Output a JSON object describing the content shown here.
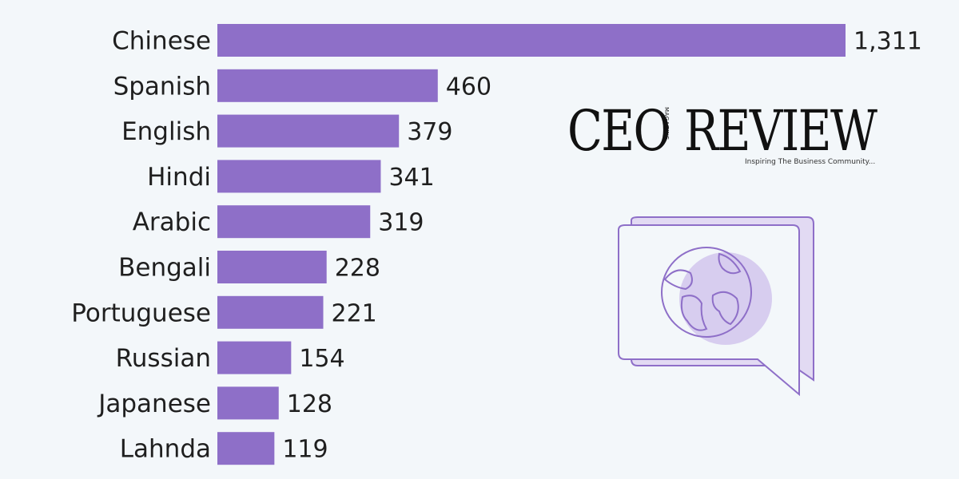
{
  "chart_data": {
    "type": "bar",
    "orientation": "horizontal",
    "categories": [
      "Chinese",
      "Spanish",
      "English",
      "Hindi",
      "Arabic",
      "Bengali",
      "Portuguese",
      "Russian",
      "Japanese",
      "Lahnda"
    ],
    "values": [
      1311,
      460,
      379,
      341,
      319,
      228,
      221,
      154,
      128,
      119
    ],
    "value_labels": [
      "1,311",
      "460",
      "379",
      "341",
      "319",
      "228",
      "221",
      "154",
      "128",
      "119"
    ],
    "bar_color": "#8e6fc8",
    "grid": false,
    "legend": "none"
  },
  "branding": {
    "logo_word_1": "CEO",
    "logo_word_2": "REVIEW",
    "logo_small": "MAGAZINE",
    "tagline": "Inspiring The Business Community..."
  },
  "decoration": {
    "icon": "globe-speech-bubble-icon",
    "accent_color": "#8e6fc8",
    "accent_light": "#d7cdef"
  }
}
